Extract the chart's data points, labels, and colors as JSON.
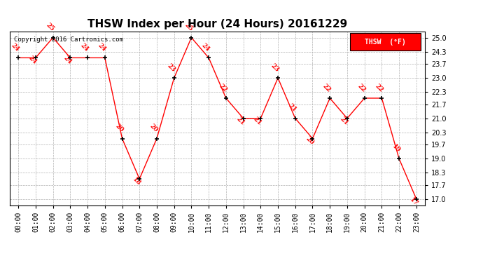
{
  "title": "THSW Index per Hour (24 Hours) 20161229",
  "copyright_text": "Copyright 2016 Cartronics.com",
  "legend_label": "THSW  (°F)",
  "hours": [
    0,
    1,
    2,
    3,
    4,
    5,
    6,
    7,
    8,
    9,
    10,
    11,
    12,
    13,
    14,
    15,
    16,
    17,
    18,
    19,
    20,
    21,
    22,
    23
  ],
  "values": [
    24,
    24,
    25,
    24,
    24,
    24,
    20,
    18,
    20,
    23,
    25,
    24,
    22,
    21,
    21,
    23,
    21,
    20,
    22,
    21,
    22,
    22,
    19,
    17
  ],
  "yticks": [
    17.0,
    17.7,
    18.3,
    19.0,
    19.7,
    20.3,
    21.0,
    21.7,
    22.3,
    23.0,
    23.7,
    24.3,
    25.0
  ],
  "ylim": [
    16.7,
    25.3
  ],
  "xlim": [
    -0.5,
    23.5
  ],
  "line_color": "red",
  "marker_color": "black",
  "label_color": "red",
  "bg_color": "white",
  "grid_color": "#aaaaaa",
  "title_fontsize": 11,
  "label_fontsize": 6.5,
  "tick_fontsize": 7,
  "copyright_fontsize": 6.5,
  "legend_bg": "red",
  "legend_text_color": "white"
}
